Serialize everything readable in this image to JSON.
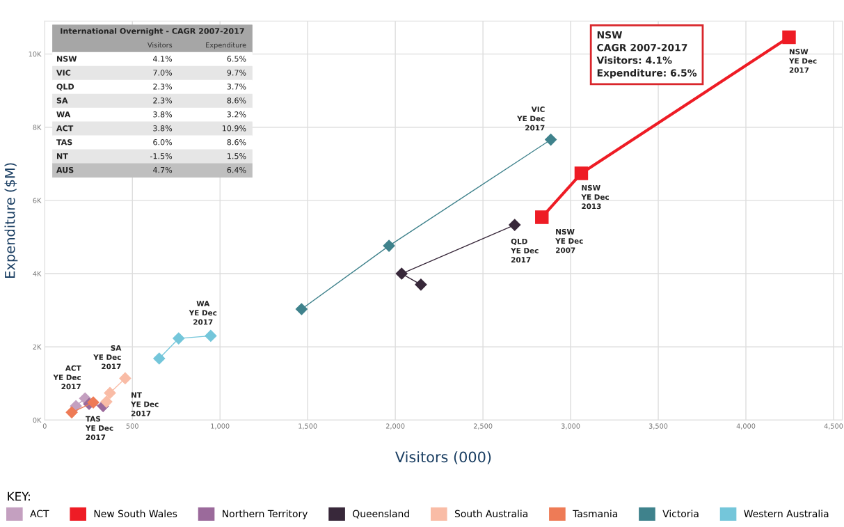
{
  "chart_data": [
    {
      "type": "line",
      "xlabel": "Visitors (000)",
      "ylabel": "Expenditure ($M)",
      "legend_title": "KEY:",
      "legend": "bottom",
      "grid": true,
      "xlim": [
        0,
        4550
      ],
      "xticks": [
        0,
        {
          "value": 500,
          "label": "500"
        },
        {
          "value": 1000,
          "label": "1,000"
        },
        {
          "value": 1500,
          "label": "1,500"
        },
        {
          "value": 2000,
          "label": "2,000"
        },
        {
          "value": 2500,
          "label": "2,500"
        },
        {
          "value": 3000,
          "label": "3,000"
        },
        {
          "value": 3500,
          "label": "3,500"
        },
        {
          "value": 4000,
          "label": "4,000"
        },
        {
          "value": 4500,
          "label": "4,500"
        }
      ],
      "ylim": [
        0,
        10900
      ],
      "yticks": [
        {
          "value": 0,
          "label": "0K"
        },
        {
          "value": 2000,
          "label": "2K"
        },
        {
          "value": 4000,
          "label": "4K"
        },
        {
          "value": 6000,
          "label": "6K"
        },
        {
          "value": 8000,
          "label": "8K"
        },
        {
          "value": 10000,
          "label": "10K"
        }
      ],
      "series": [
        {
          "name": "ACT",
          "marker": "diamond",
          "color": "#c4a0c0",
          "x": [
            178,
            230
          ],
          "values": [
            380,
            590
          ]
        },
        {
          "name": "New South Wales",
          "marker": "square",
          "color": "#ee1c25",
          "x": [
            2836,
            3061,
            4246
          ],
          "values": [
            5540,
            6740,
            10460
          ]
        },
        {
          "name": "Northern Territory",
          "marker": "diamond",
          "color": "#9b6a9b",
          "x": [
            333,
            253
          ],
          "values": [
            380,
            440
          ]
        },
        {
          "name": "Queensland",
          "marker": "diamond",
          "color": "#38283a",
          "x": [
            2146,
            2036,
            2681
          ],
          "values": [
            3700,
            4000,
            5330
          ]
        },
        {
          "name": "South Australia",
          "marker": "diamond",
          "color": "#f9bca6",
          "x": [
            352,
            372,
            459
          ],
          "values": [
            500,
            740,
            1140
          ]
        },
        {
          "name": "Tasmania",
          "marker": "diamond",
          "color": "#ee7b56",
          "x": [
            154,
            277
          ],
          "values": [
            210,
            480
          ]
        },
        {
          "name": "Victoria",
          "marker": "diamond",
          "color": "#3f828c",
          "x": [
            1465,
            1964,
            2887
          ],
          "values": [
            3030,
            4760,
            7660
          ]
        },
        {
          "name": "Western Australia",
          "marker": "diamond",
          "color": "#74c6da",
          "x": [
            653,
            764,
            947
          ],
          "values": [
            1680,
            2230,
            2300
          ]
        }
      ],
      "annotations": [
        "NSW\nCAGR 2007-2017\nVisitors: 4.1%\nExpenditure: 6.5%",
        {
          "text": "NSW\nYE Dec\n2017",
          "x": 4246,
          "y": 10460
        },
        {
          "text": "NSW\nYE Dec\n2013",
          "x": 3061,
          "y": 6740
        },
        {
          "text": "NSW\nYE Dec\n2007",
          "x": 2836,
          "y": 5540
        },
        {
          "text": "VIC\nYE Dec\n2017",
          "x": 2887,
          "y": 7660
        },
        {
          "text": "QLD\nYE Dec\n2017",
          "x": 2681,
          "y": 5330
        },
        {
          "text": "WA\nYE Dec\n2017",
          "x": 947,
          "y": 2300
        },
        {
          "text": "SA\nYE Dec\n2017",
          "x": 459,
          "y": 1140
        },
        {
          "text": "ACT\nYE Dec\n2017",
          "x": 230,
          "y": 590
        },
        {
          "text": "TAS\nYE Dec\n2017",
          "x": 277,
          "y": 480
        },
        "NT\nYE Dec\n2017"
      ]
    },
    {
      "type": "other",
      "title": "International Overnight - CAGR 2007-2017",
      "annotations": [
        "Visitors",
        "Expenditure",
        "NSW",
        "4.1%",
        "6.5%",
        "VIC",
        "7.0%",
        "9.7%",
        "QLD",
        "2.3%",
        "3.7%",
        "SA",
        "2.3%",
        "8.6%",
        "WA",
        "3.8%",
        "3.2%",
        "ACT",
        "3.8%",
        "10.9%",
        "TAS",
        "6.0%",
        "8.6%",
        "NT",
        "-1.5%",
        "1.5%",
        "AUS",
        "4.7%",
        "6.4%"
      ]
    }
  ]
}
